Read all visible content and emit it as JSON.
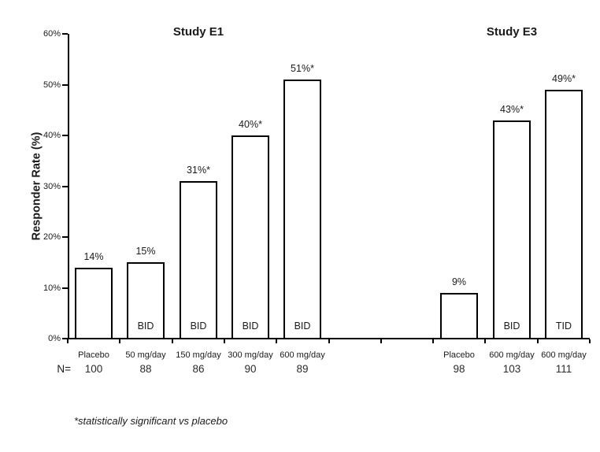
{
  "chart_data": {
    "type": "bar",
    "ylabel": "Responder Rate (%)",
    "ylim": [
      0,
      60
    ],
    "ytick_step": 10,
    "ytick_labels": [
      "0%",
      "10%",
      "20%",
      "30%",
      "40%",
      "50%",
      "60%"
    ],
    "grid": "off",
    "legend": "none",
    "bar_fill": "#ffffff",
    "bar_border": "#000000",
    "gap_slots_between_studies": 2,
    "n_row_label": "N=",
    "footnote": "*statistically significant vs placebo",
    "studies": [
      {
        "name": "Study E1",
        "bars": [
          {
            "category": "Placebo",
            "value": 14,
            "label": "14%",
            "n": "100",
            "dose_schedule": ""
          },
          {
            "category": "50 mg/day",
            "value": 15,
            "label": "15%",
            "n": "88",
            "dose_schedule": "BID"
          },
          {
            "category": "150 mg/day",
            "value": 31,
            "label": "31%*",
            "n": "86",
            "dose_schedule": "BID"
          },
          {
            "category": "300 mg/day",
            "value": 40,
            "label": "40%*",
            "n": "90",
            "dose_schedule": "BID"
          },
          {
            "category": "600 mg/day",
            "value": 51,
            "label": "51%*",
            "n": "89",
            "dose_schedule": "BID"
          }
        ]
      },
      {
        "name": "Study E3",
        "bars": [
          {
            "category": "Placebo",
            "value": 9,
            "label": "9%",
            "n": "98",
            "dose_schedule": ""
          },
          {
            "category": "600 mg/day",
            "value": 43,
            "label": "43%*",
            "n": "103",
            "dose_schedule": "BID"
          },
          {
            "category": "600 mg/day",
            "value": 49,
            "label": "49%*",
            "n": "111",
            "dose_schedule": "TID"
          }
        ]
      }
    ]
  }
}
